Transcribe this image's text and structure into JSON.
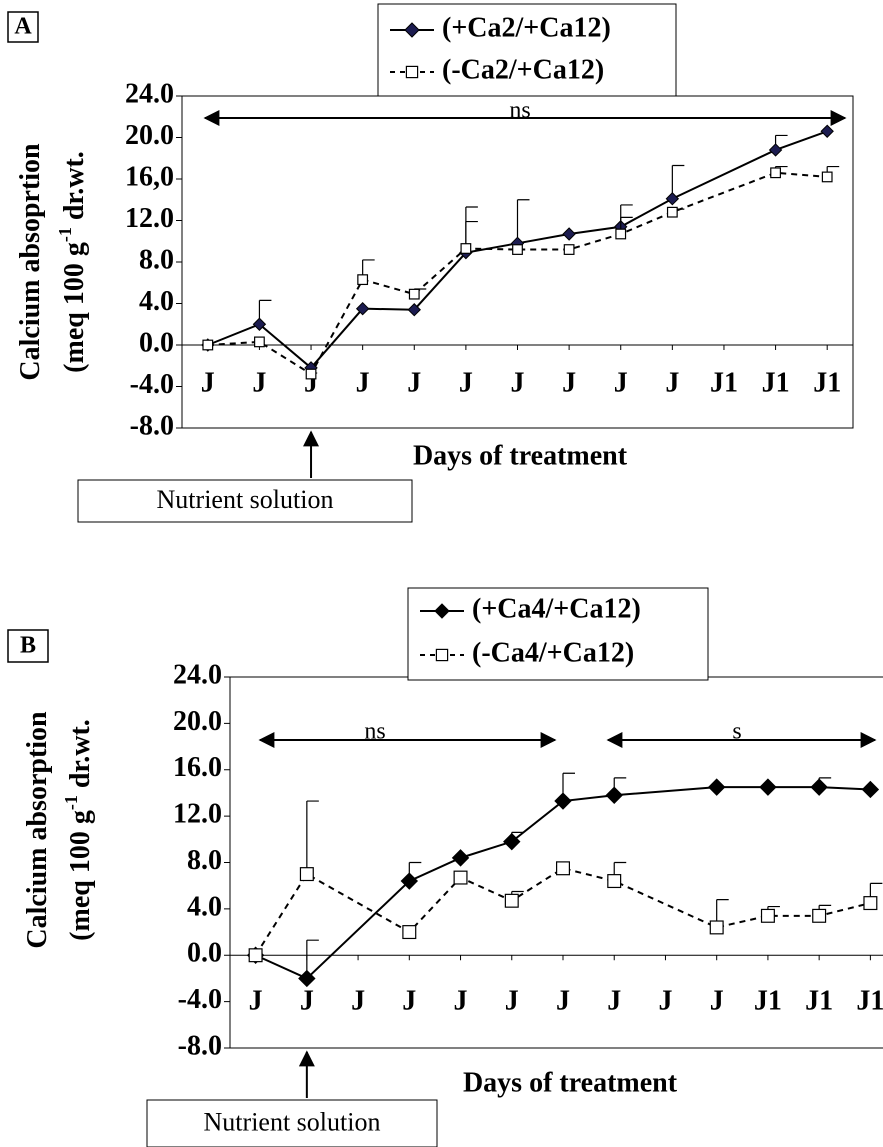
{
  "chart_data": [
    {
      "type": "line",
      "panel_label": "A",
      "ylabel": [
        "Calcium absoprtion",
        "(meq 100 g",
        "-1",
        " dr.wt."
      ],
      "xlabel": "Days of treatment",
      "annotations": [
        "ns"
      ],
      "callout": "Nutrient solution",
      "x": [
        0,
        1,
        2,
        3,
        4,
        5,
        6,
        7,
        8,
        9,
        11,
        12
      ],
      "xlim": [
        -0.5,
        12.5
      ],
      "xticks": [
        {
          "value": 0,
          "label": "J"
        },
        {
          "value": 1,
          "label": "J"
        },
        {
          "value": 2,
          "label": "J"
        },
        {
          "value": 3,
          "label": "J"
        },
        {
          "value": 4,
          "label": "J"
        },
        {
          "value": 5,
          "label": "J"
        },
        {
          "value": 6,
          "label": "J"
        },
        {
          "value": 7,
          "label": "J"
        },
        {
          "value": 8,
          "label": "J"
        },
        {
          "value": 9,
          "label": "J"
        },
        {
          "value": 10,
          "label": "J1"
        },
        {
          "value": 11,
          "label": "J1"
        },
        {
          "value": 12,
          "label": "J1"
        }
      ],
      "ylim": [
        -8,
        24
      ],
      "yticks": [
        {
          "value": 24,
          "label": "24.0"
        },
        {
          "value": 20,
          "label": "20.0"
        },
        {
          "value": 16,
          "label": "16,0"
        },
        {
          "value": 12,
          "label": "12.0"
        },
        {
          "value": 8,
          "label": "8.0"
        },
        {
          "value": 4,
          "label": "4.0"
        },
        {
          "value": 0,
          "label": "0.0"
        },
        {
          "value": -4,
          "label": "-4.0"
        },
        {
          "value": -8,
          "label": "-8.0"
        }
      ],
      "grid": false,
      "series": [
        {
          "name": "(+Ca2/+Ca12)",
          "color": "#000000",
          "marker_color": "#1c1c50",
          "marker": "diamond",
          "dashed": false,
          "values": [
            0,
            2.0,
            -2.2,
            3.5,
            3.4,
            8.9,
            9.8,
            10.7,
            11.4,
            14.1,
            18.8,
            20.6
          ],
          "errors": [
            null,
            2.3,
            null,
            null,
            null,
            4.4,
            4.2,
            null,
            2.1,
            3.2,
            1.4,
            null
          ]
        },
        {
          "name": "(-Ca2/+Ca12)",
          "color": "#000000",
          "marker_color": "#000000",
          "marker": "square",
          "dashed": true,
          "values": [
            0,
            0.3,
            -2.8,
            6.3,
            4.9,
            9.3,
            9.2,
            9.2,
            10.7,
            12.8,
            16.6,
            16.2
          ],
          "errors": [
            null,
            null,
            null,
            1.9,
            0.5,
            2.6,
            null,
            null,
            1.6,
            0.3,
            0.6,
            1.0
          ]
        }
      ]
    },
    {
      "type": "line",
      "panel_label": "B",
      "ylabel": [
        "Calcium absorption",
        "(meq 100 g",
        "-1",
        " dr.wt."
      ],
      "xlabel": "Days of treatment",
      "annotations": [
        "ns",
        "s"
      ],
      "callout": "Nutrient solution",
      "x": [
        0,
        1,
        3,
        4,
        5,
        6,
        7,
        9,
        10,
        11,
        12
      ],
      "xlim": [
        -0.5,
        12.5
      ],
      "xticks": [
        {
          "value": 0,
          "label": "J"
        },
        {
          "value": 1,
          "label": "J"
        },
        {
          "value": 2,
          "label": "J"
        },
        {
          "value": 3,
          "label": "J"
        },
        {
          "value": 4,
          "label": "J"
        },
        {
          "value": 5,
          "label": "J"
        },
        {
          "value": 6,
          "label": "J"
        },
        {
          "value": 7,
          "label": "J"
        },
        {
          "value": 8,
          "label": "J"
        },
        {
          "value": 9,
          "label": "J"
        },
        {
          "value": 10,
          "label": "J1"
        },
        {
          "value": 11,
          "label": "J1"
        },
        {
          "value": 12,
          "label": "J1"
        }
      ],
      "ylim": [
        -8,
        24
      ],
      "yticks": [
        {
          "value": 24,
          "label": "24.0"
        },
        {
          "value": 20,
          "label": "20.0"
        },
        {
          "value": 16,
          "label": "16.0"
        },
        {
          "value": 12,
          "label": "12.0"
        },
        {
          "value": 8,
          "label": "8.0"
        },
        {
          "value": 4,
          "label": "4.0"
        },
        {
          "value": 0,
          "label": "0.0"
        },
        {
          "value": -4,
          "label": "-4.0"
        },
        {
          "value": -8,
          "label": "-8.0"
        }
      ],
      "grid": false,
      "series": [
        {
          "name": "(+Ca4/+Ca12)",
          "color": "#000000",
          "marker_color": "#000000",
          "marker": "diamond",
          "dashed": false,
          "values": [
            0,
            -2.0,
            6.4,
            8.4,
            9.8,
            13.3,
            13.8,
            14.5,
            14.5,
            14.5,
            14.3
          ],
          "errors": [
            null,
            3.3,
            1.6,
            null,
            0.8,
            2.4,
            1.5,
            null,
            null,
            0.8,
            null
          ]
        },
        {
          "name": "(-Ca4/+Ca12)",
          "color": "#000000",
          "marker_color": "#000000",
          "marker": "square",
          "dashed": true,
          "values": [
            0,
            7.0,
            2.0,
            6.7,
            4.7,
            7.5,
            6.4,
            2.4,
            3.4,
            3.4,
            4.5
          ],
          "errors": [
            null,
            6.3,
            null,
            null,
            0.8,
            null,
            1.6,
            2.4,
            0.8,
            0.9,
            1.7
          ]
        }
      ]
    }
  ]
}
